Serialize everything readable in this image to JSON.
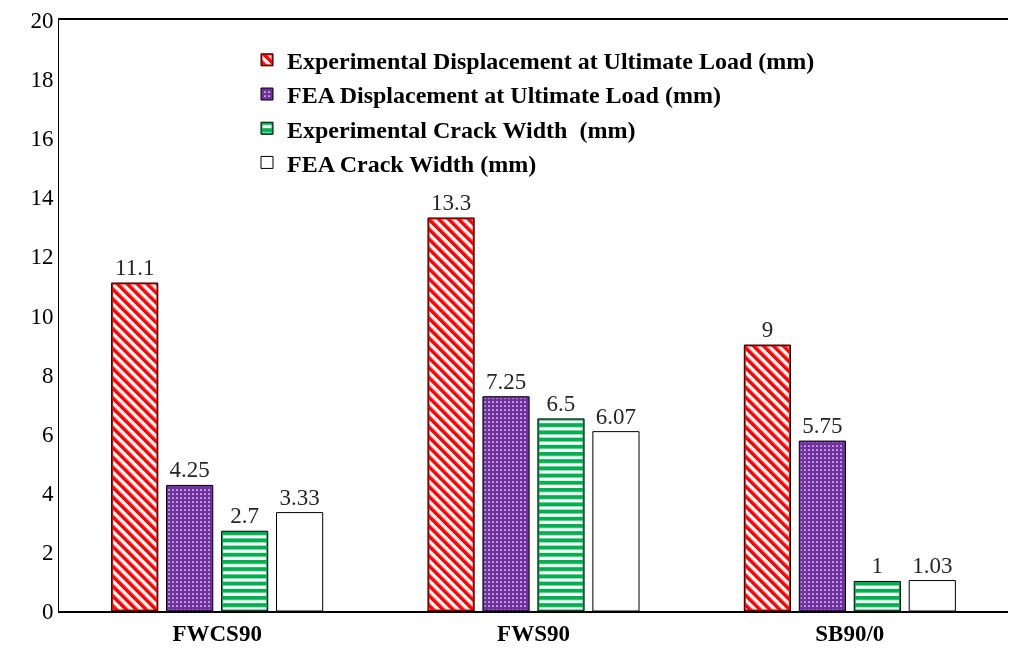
{
  "chart_data": {
    "type": "bar",
    "categories": [
      "FWCS90",
      "FWS90",
      "SB90/0"
    ],
    "series": [
      {
        "name": "Experimental Displacement at Ultimate Load (mm)",
        "color": "#ff0000",
        "values": [
          11.1,
          13.3,
          9
        ]
      },
      {
        "name": "FEA Displacement at Ultimate Load (mm)",
        "color": "#7030a0",
        "values": [
          4.25,
          7.25,
          5.75
        ]
      },
      {
        "name": "Experimental Crack Width  (mm)",
        "color": "#00b050",
        "values": [
          2.7,
          6.5,
          1
        ]
      },
      {
        "name": "FEA Crack Width (mm)",
        "color": "#ffffff",
        "values": [
          3.33,
          6.07,
          1.03
        ]
      }
    ],
    "ylim": [
      0,
      20
    ],
    "yticks": [
      0,
      2,
      4,
      6,
      8,
      10,
      12,
      14,
      16,
      18,
      20
    ],
    "data_labels": true,
    "legend": "top"
  }
}
